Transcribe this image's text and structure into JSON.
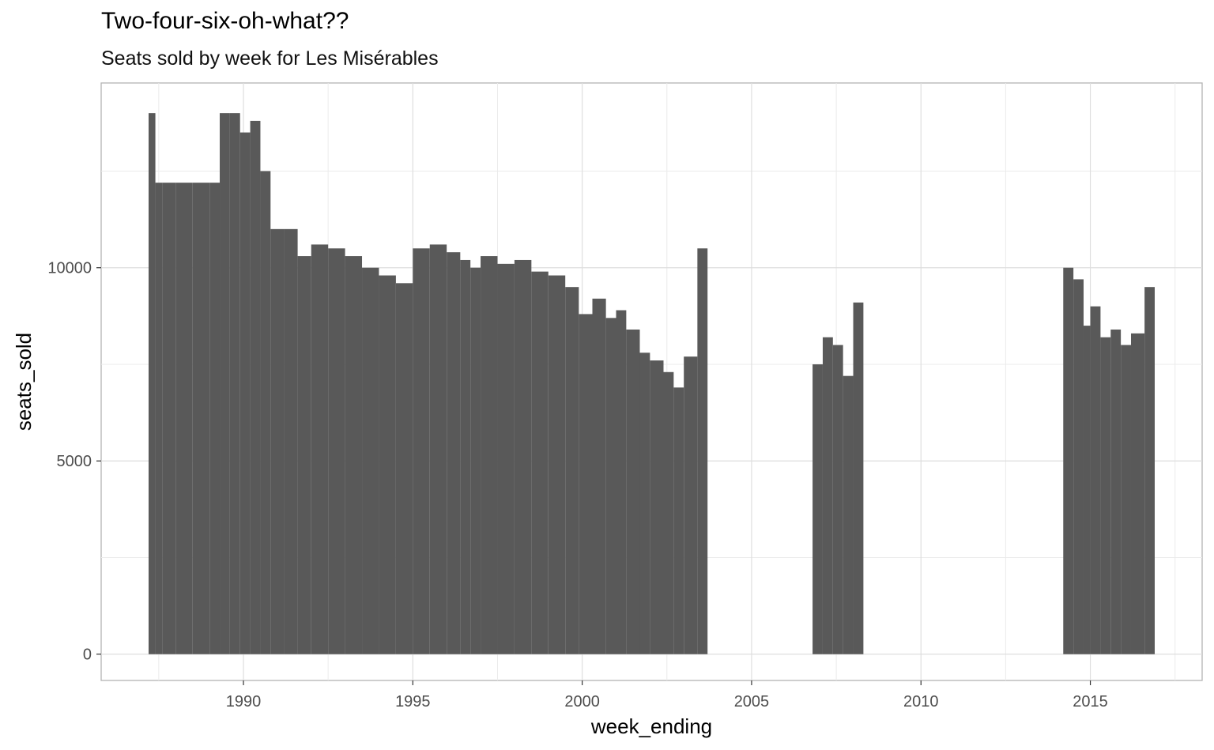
{
  "chart_data": {
    "type": "bar",
    "title": "Two-four-six-oh-what??",
    "subtitle": "Seats sold by week for Les Misérables",
    "xlabel": "week_ending",
    "ylabel": "seats_sold",
    "x_ticks": [
      {
        "label": "1990",
        "value": 1990
      },
      {
        "label": "1995",
        "value": 1995
      },
      {
        "label": "2000",
        "value": 2000
      },
      {
        "label": "2005",
        "value": 2005
      },
      {
        "label": "2010",
        "value": 2010
      },
      {
        "label": "2015",
        "value": 2015
      }
    ],
    "y_ticks": [
      {
        "label": "0",
        "value": 0
      },
      {
        "label": "5000",
        "value": 5000
      },
      {
        "label": "10000",
        "value": 10000
      }
    ],
    "xlim": [
      1985.8,
      2018.3
    ],
    "ylim": [
      -680,
      14780
    ],
    "grid": true,
    "bar_color": "#595959",
    "series": [
      {
        "x": [
          1987.2,
          1987.4,
          1987.6,
          1988.0,
          1988.5,
          1989.0,
          1989.3,
          1989.6,
          1989.9,
          1990.2,
          1990.5,
          1990.8,
          1991.2,
          1991.6,
          1992.0,
          1992.5,
          1993.0,
          1993.5,
          1994.0,
          1994.5,
          1995.0,
          1995.5,
          1996.0,
          1996.4,
          1996.7,
          1997.0,
          1997.5,
          1998.0,
          1998.5,
          1999.0,
          1999.5,
          1999.9,
          2000.3,
          2000.7,
          2001.0,
          2001.3,
          2001.7,
          2002.0,
          2002.4,
          2002.7,
          2003.0,
          2003.4,
          2006.8,
          2007.1,
          2007.4,
          2007.7,
          2008.0,
          2014.2,
          2014.5,
          2014.8,
          2015.0,
          2015.3,
          2015.6,
          2015.9,
          2016.2,
          2016.6
        ],
        "y": [
          14000,
          12200,
          12200,
          12200,
          12200,
          12200,
          14000,
          14000,
          13500,
          13800,
          12500,
          11000,
          11000,
          10300,
          10600,
          10500,
          10300,
          10000,
          9800,
          9600,
          10500,
          10600,
          10400,
          10200,
          10000,
          10300,
          10100,
          10200,
          9900,
          9800,
          9500,
          8800,
          9200,
          8700,
          8900,
          8400,
          7800,
          7600,
          7300,
          6900,
          7700,
          10500,
          7500,
          8200,
          8000,
          7200,
          9100,
          10000,
          9700,
          8500,
          9000,
          8200,
          8400,
          8000,
          8300,
          9500
        ]
      }
    ]
  }
}
